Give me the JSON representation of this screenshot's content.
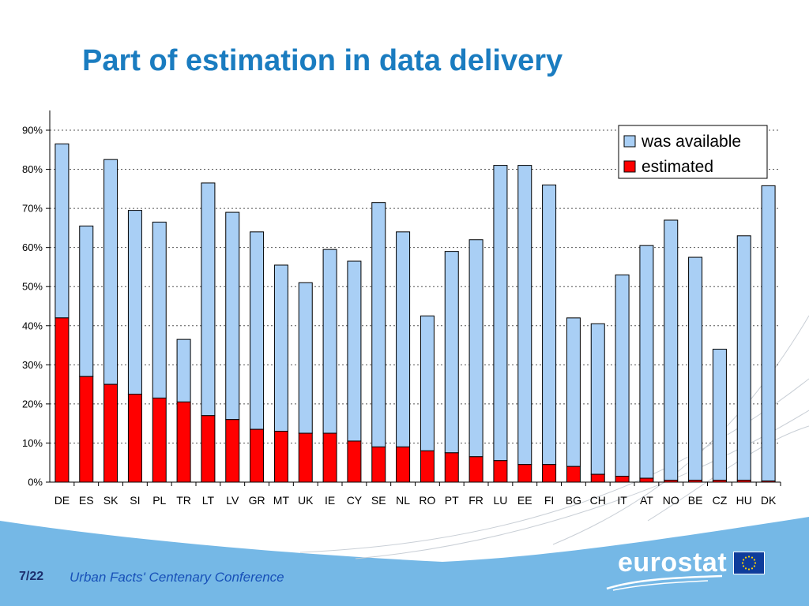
{
  "title": "Part of estimation in data delivery",
  "footer": {
    "page": "7/22",
    "conference": "Urban Facts' Centenary Conference",
    "logo_text": "eurostat"
  },
  "colors": {
    "title": "#1a7cc0",
    "was_available": "#a9cff5",
    "estimated": "#ff0000",
    "bottom_band": "#75b8e6"
  },
  "chart_data": {
    "type": "bar",
    "stacked": true,
    "categories": [
      "DE",
      "ES",
      "SK",
      "SI",
      "PL",
      "TR",
      "LT",
      "LV",
      "GR",
      "MT",
      "UK",
      "IE",
      "CY",
      "SE",
      "NL",
      "RO",
      "PT",
      "FR",
      "LU",
      "EE",
      "FI",
      "BG",
      "CH",
      "IT",
      "AT",
      "NO",
      "BE",
      "CZ",
      "HU",
      "DK"
    ],
    "series": [
      {
        "name": "estimated",
        "color": "#ff0000",
        "values": [
          42,
          27,
          25,
          22.5,
          21.5,
          20.5,
          17,
          16,
          13.5,
          13,
          12.5,
          12.5,
          10.5,
          9,
          9,
          8,
          7.5,
          6.5,
          5.5,
          4.5,
          4.5,
          4,
          2,
          1.5,
          1,
          0.5,
          0.5,
          0.5,
          0.5,
          0.3
        ]
      },
      {
        "name": "was available",
        "color": "#a9cff5",
        "values": [
          44.5,
          38.5,
          57.5,
          47,
          45,
          16,
          59.5,
          53,
          50.5,
          42.5,
          38.5,
          47,
          46,
          62.5,
          55,
          34.5,
          51.5,
          55.5,
          75.5,
          76.5,
          71.5,
          38,
          38.5,
          51.5,
          59.5,
          66.5,
          57,
          33.5,
          62.5,
          75.5
        ]
      }
    ],
    "ylim": [
      0,
      90
    ],
    "yticks": [
      "0%",
      "10%",
      "20%",
      "30%",
      "40%",
      "50%",
      "60%",
      "70%",
      "80%",
      "90%"
    ],
    "legend": {
      "position": "top-right",
      "entries": [
        "was available",
        "estimated"
      ]
    },
    "grid": "horizontal-dotted"
  }
}
